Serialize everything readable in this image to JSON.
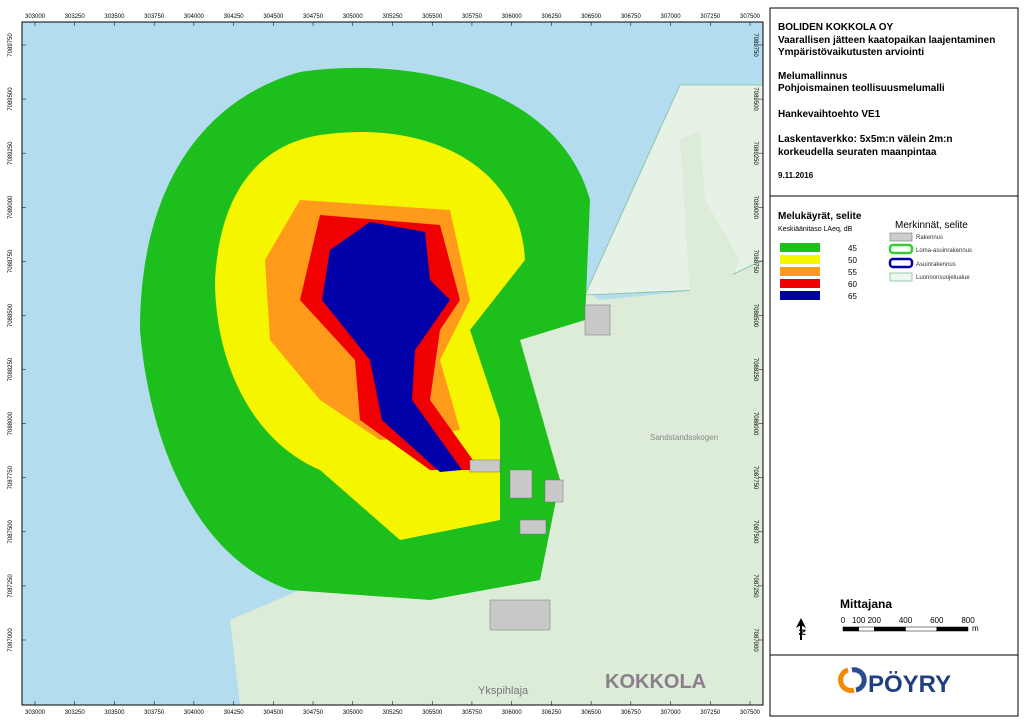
{
  "coordinates": {
    "x_ticks": [
      303000,
      303250,
      303500,
      303750,
      304000,
      304250,
      304500,
      304750,
      305000,
      305250,
      305500,
      305750,
      306000,
      306250,
      306500,
      306750,
      307000,
      307250,
      307500
    ],
    "y_ticks": [
      7089750,
      7089500,
      7089250,
      7089000,
      7088750,
      7088500,
      7088250,
      7088000,
      7087750,
      7087500,
      7087250,
      7087000
    ]
  },
  "title_block": {
    "company": "BOLIDEN KOKKOLA OY",
    "project": [
      "Vaarallisen jätteen kaatopaikan laajentaminen",
      "Ympäristövaikutusten arviointi"
    ],
    "model": [
      "Melumallinnus",
      "Pohjoismainen teollisuusmelumalli"
    ],
    "alternative": "Hankevaihtoehto VE1",
    "grid": [
      "Laskentaverkko: 5x5m:n välein 2m:n",
      "korkeudella seuraten maanpintaa"
    ],
    "date": "9.11.2016"
  },
  "noise_legend": {
    "title": "Melukäyrät, selite",
    "subtitle": "Keskiäänitaso LAeq, dB",
    "levels": [
      {
        "value": 45,
        "color": "#1cbf1c"
      },
      {
        "value": 50,
        "color": "#f5f500"
      },
      {
        "value": 55,
        "color": "#ff9a1a"
      },
      {
        "value": 60,
        "color": "#f00000"
      },
      {
        "value": 65,
        "color": "#0000a8"
      }
    ]
  },
  "symbol_legend": {
    "title": "Merkinnät, selite",
    "items": [
      "Rakennus",
      "Loma-asuinrakennus",
      "Asuinrakennus",
      "Luonnonsuojelualue"
    ]
  },
  "scale_bar": {
    "title": "Mittajana",
    "ticks": [
      0,
      100,
      200,
      400,
      600,
      800
    ],
    "unit": "m"
  },
  "map_labels": [
    "KOKKOLA",
    "Ykspihlaja",
    "Sandstandsskogen"
  ],
  "north": "N",
  "logo": "PÖYRY"
}
